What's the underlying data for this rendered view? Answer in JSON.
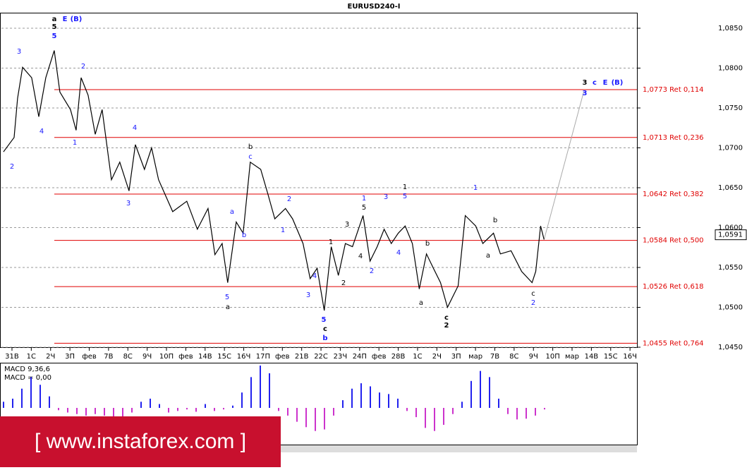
{
  "chart_data": {
    "type": "line",
    "title": "EURUSD240-I",
    "xlim": [
      -0.62,
      32.36
    ],
    "ylim": [
      1.045,
      1.085
    ],
    "grid": true,
    "color": "#000000",
    "xticks": [
      {
        "value": 0,
        "label": "31В"
      },
      {
        "value": 1,
        "label": "1С"
      },
      {
        "value": 2,
        "label": "2Ч"
      },
      {
        "value": 3,
        "label": "3П"
      },
      {
        "value": 4,
        "label": "фев"
      },
      {
        "value": 5,
        "label": "7В"
      },
      {
        "value": 6,
        "label": "8С"
      },
      {
        "value": 7,
        "label": "9Ч"
      },
      {
        "value": 8,
        "label": "10П"
      },
      {
        "value": 9,
        "label": "фев"
      },
      {
        "value": 10,
        "label": "14В"
      },
      {
        "value": 11,
        "label": "15С"
      },
      {
        "value": 12,
        "label": "16Ч"
      },
      {
        "value": 13,
        "label": "17П"
      },
      {
        "value": 14,
        "label": "фев"
      },
      {
        "value": 15,
        "label": "21В"
      },
      {
        "value": 16,
        "label": "22С"
      },
      {
        "value": 17,
        "label": "23Ч"
      },
      {
        "value": 18,
        "label": "24П"
      },
      {
        "value": 19,
        "label": "фев"
      },
      {
        "value": 20,
        "label": "28В"
      },
      {
        "value": 21,
        "label": "1С"
      },
      {
        "value": 22,
        "label": "2Ч"
      },
      {
        "value": 23,
        "label": "3П"
      },
      {
        "value": 24,
        "label": "мар"
      },
      {
        "value": 25,
        "label": "7В"
      },
      {
        "value": 26,
        "label": "8С"
      },
      {
        "value": 27,
        "label": "9Ч"
      },
      {
        "value": 28,
        "label": "10П"
      },
      {
        "value": 29,
        "label": "мар"
      },
      {
        "value": 30,
        "label": "14В"
      },
      {
        "value": 31,
        "label": "15С"
      },
      {
        "value": 32,
        "label": "16Ч"
      }
    ],
    "yticks": [
      {
        "value": 1.085,
        "label": "1,0850"
      },
      {
        "value": 1.08,
        "label": "1,0800"
      },
      {
        "value": 1.075,
        "label": "1,0750"
      },
      {
        "value": 1.07,
        "label": "1,0700"
      },
      {
        "value": 1.065,
        "label": "1,0650"
      },
      {
        "value": 1.06,
        "label": "1,0600"
      },
      {
        "value": 1.055,
        "label": "1,0550"
      },
      {
        "value": 1.05,
        "label": "1,0500"
      },
      {
        "value": 1.045,
        "label": "1,0450"
      }
    ],
    "x": [
      -0.44,
      0.11,
      0.29,
      0.55,
      1.02,
      1.39,
      1.75,
      2.19,
      2.48,
      3.03,
      3.32,
      3.58,
      3.94,
      4.31,
      4.67,
      5.15,
      5.58,
      6.06,
      6.39,
      6.86,
      7.23,
      7.59,
      8.32,
      9.05,
      9.6,
      10.15,
      10.51,
      10.88,
      11.17,
      11.61,
      11.97,
      12.34,
      12.88,
      13.25,
      13.61,
      14.16,
      14.53,
      15.07,
      15.44,
      15.8,
      16.17,
      16.53,
      16.9,
      17.26,
      17.63,
      18.18,
      18.54,
      18.91,
      19.27,
      19.64,
      20,
      20.36,
      20.73,
      21.09,
      21.46,
      21.82,
      22.19,
      22.55,
      23.1,
      23.47,
      24.01,
      24.38,
      24.93,
      25.29,
      25.84,
      26.39,
      26.93,
      27.12,
      27.37,
      27.55
    ],
    "values": [
      1.0695,
      1.0713,
      1.0762,
      1.0801,
      1.0788,
      1.0739,
      1.0788,
      1.0822,
      1.077,
      1.0748,
      1.0722,
      1.0788,
      1.0766,
      1.0717,
      1.0748,
      1.066,
      1.0682,
      1.0646,
      1.0704,
      1.0673,
      1.07,
      1.066,
      1.062,
      1.0633,
      1.0598,
      1.0624,
      1.0566,
      1.058,
      1.0531,
      1.0607,
      1.0593,
      1.0682,
      1.0673,
      1.0642,
      1.0611,
      1.0624,
      1.0611,
      1.058,
      1.0536,
      1.0549,
      1.0496,
      1.0576,
      1.054,
      1.058,
      1.0576,
      1.0615,
      1.0558,
      1.0576,
      1.0598,
      1.058,
      1.0593,
      1.0602,
      1.058,
      1.0523,
      1.0567,
      1.0549,
      1.0531,
      1.05,
      1.0527,
      1.0615,
      1.0602,
      1.058,
      1.0593,
      1.0567,
      1.0571,
      1.0545,
      1.0531,
      1.0545,
      1.0602,
      1.0585
    ],
    "projection": {
      "x": [
        27.55,
        29.6
      ],
      "values": [
        1.0585,
        1.077
      ]
    },
    "last_price": {
      "value": 1.0591,
      "label": "1,0591"
    },
    "fib_levels": [
      {
        "value": 1.0773,
        "label": "1,0773 Ret 0,114"
      },
      {
        "value": 1.0713,
        "label": "1,0713 Ret 0,236"
      },
      {
        "value": 1.0642,
        "label": "1,0642 Ret 0,382"
      },
      {
        "value": 1.0584,
        "label": "1,0584 Ret 0,500"
      },
      {
        "value": 1.0526,
        "label": "1,0526 Ret 0,618"
      },
      {
        "value": 1.0455,
        "label": "1,0455 Ret 0,764"
      }
    ],
    "annotations": [
      "a",
      "E",
      "(B)",
      "5",
      "5",
      "3",
      "2",
      "4",
      "1",
      "2",
      "4",
      "3",
      "b",
      "c",
      "a",
      "b",
      "2",
      "1",
      "5",
      "a",
      "4",
      "3",
      "1",
      "2",
      "3",
      "4",
      "2",
      "1",
      "5",
      "3",
      "4",
      "1",
      "5",
      "b",
      "a",
      "c",
      "2",
      "5",
      "c",
      "b",
      "1",
      "b",
      "a",
      "c",
      "2",
      "3",
      "c",
      "E",
      "(B)",
      "3"
    ],
    "macd": {
      "label": "MACD 9,36,6",
      "value_label": "MACD = 0,00",
      "values": [
        8,
        12,
        25,
        40,
        30,
        15,
        -3,
        -6,
        -8,
        -10,
        -8,
        -10,
        -12,
        -12,
        -6,
        8,
        12,
        5,
        -6,
        -4,
        -2,
        -5,
        5,
        -4,
        -2,
        3,
        20,
        40,
        55,
        45,
        -4,
        -10,
        -18,
        -25,
        -30,
        -28,
        -10,
        10,
        25,
        32,
        28,
        20,
        18,
        12,
        -4,
        -12,
        -26,
        -30,
        -22,
        -8,
        8,
        35,
        48,
        40,
        12,
        -8,
        -15,
        -14,
        -10,
        -2
      ]
    },
    "watermark": "[ www.instaforex.com ]"
  }
}
